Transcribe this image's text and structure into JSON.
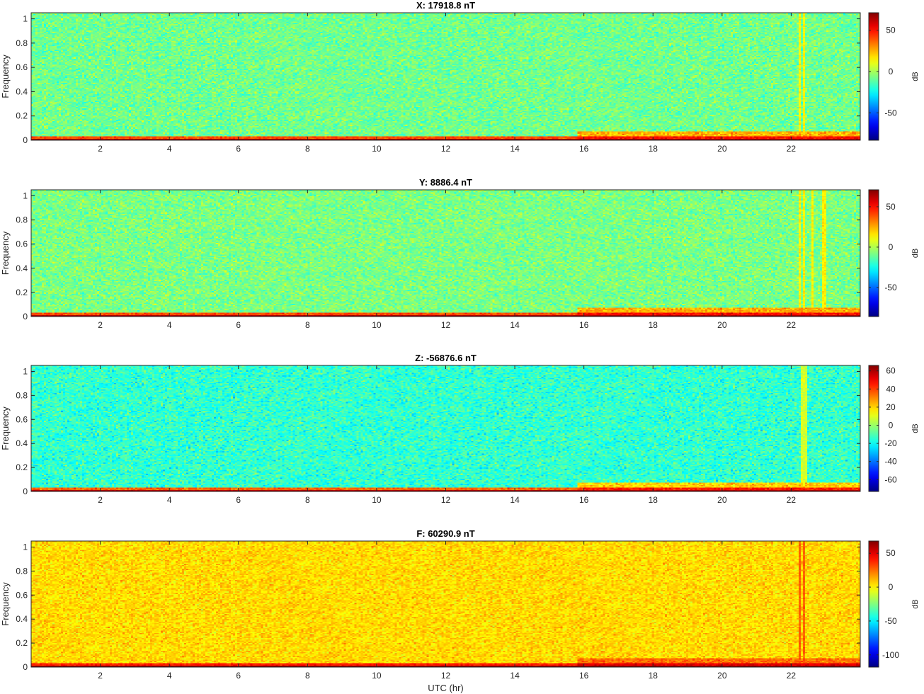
{
  "chart_data": [
    {
      "type": "heatmap",
      "title": "X: 17918.8 nT",
      "xlabel": "",
      "ylabel": "Frequency",
      "xlim": [
        0,
        24
      ],
      "ylim": [
        0,
        1.05
      ],
      "xticks": [
        "2",
        "4",
        "6",
        "8",
        "10",
        "12",
        "14",
        "16",
        "18",
        "20",
        "22"
      ],
      "yticks": [
        "0",
        "0.2",
        "0.4",
        "0.6",
        "0.8",
        "1"
      ],
      "colorbar": {
        "label": "dB",
        "range": [
          -83,
          71
        ],
        "ticks": [
          "50",
          "0",
          "-50"
        ],
        "tick_values": [
          50,
          0,
          -50
        ]
      },
      "noise_level_db": -8,
      "low_freq_band_db": 55,
      "spikes_utc": [
        22.25,
        22.35
      ]
    },
    {
      "type": "heatmap",
      "title": "Y: 8886.4 nT",
      "xlabel": "",
      "ylabel": "Frequency",
      "xlim": [
        0,
        24
      ],
      "ylim": [
        0,
        1.05
      ],
      "xticks": [
        "2",
        "4",
        "6",
        "8",
        "10",
        "12",
        "14",
        "16",
        "18",
        "20",
        "22"
      ],
      "yticks": [
        "0",
        "0.2",
        "0.4",
        "0.6",
        "0.8",
        "1"
      ],
      "colorbar": {
        "label": "dB",
        "range": [
          -86,
          71
        ],
        "ticks": [
          "50",
          "0",
          "-50"
        ],
        "tick_values": [
          50,
          0,
          -50
        ]
      },
      "noise_level_db": -8,
      "low_freq_band_db": 55,
      "spikes_utc": [
        22.25,
        22.35,
        22.6,
        22.9,
        23.0
      ]
    },
    {
      "type": "heatmap",
      "title": "Z: -56876.6 nT",
      "xlabel": "",
      "ylabel": "Frequency",
      "xlim": [
        0,
        24
      ],
      "ylim": [
        0,
        1.05
      ],
      "xticks": [
        "2",
        "4",
        "6",
        "8",
        "10",
        "12",
        "14",
        "16",
        "18",
        "20",
        "22"
      ],
      "yticks": [
        "0",
        "0.2",
        "0.4",
        "0.6",
        "0.8",
        "1"
      ],
      "colorbar": {
        "label": "dB",
        "range": [
          -73,
          66
        ],
        "ticks": [
          "60",
          "40",
          "20",
          "0",
          "-20",
          "-40",
          "-60"
        ],
        "tick_values": [
          60,
          40,
          20,
          0,
          -20,
          -40,
          -60
        ]
      },
      "noise_level_db": -14,
      "low_freq_band_db": 50,
      "spikes_utc": [
        22.3,
        22.4
      ]
    },
    {
      "type": "heatmap",
      "title": "F: 60290.9 nT",
      "xlabel": "UTC (hr)",
      "ylabel": "Frequency",
      "xlim": [
        0,
        24
      ],
      "ylim": [
        0,
        1.05
      ],
      "xticks": [
        "2",
        "4",
        "6",
        "8",
        "10",
        "12",
        "14",
        "16",
        "18",
        "20",
        "22"
      ],
      "yticks": [
        "0",
        "0.2",
        "0.4",
        "0.6",
        "0.8",
        "1"
      ],
      "colorbar": {
        "label": "dB",
        "range": [
          -118,
          68
        ],
        "ticks": [
          "50",
          "0",
          "-50",
          "-100"
        ],
        "tick_values": [
          50,
          0,
          -50,
          -100
        ]
      },
      "noise_level_db": 5,
      "low_freq_band_db": 55,
      "spikes_utc": [
        22.25,
        22.35
      ]
    }
  ]
}
